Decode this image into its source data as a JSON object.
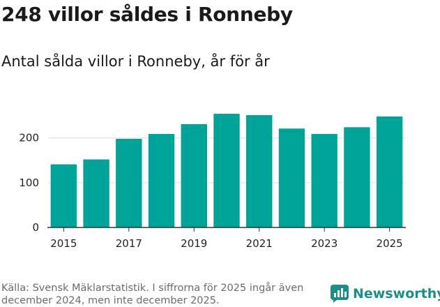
{
  "header": {
    "title": "248 villor såldes i Ronneby",
    "subtitle": "Antal sålda villor i Ronneby, år för år"
  },
  "footer": {
    "source_text": "Källa: Svensk Mäklarstatistik. I siffrorna för 2025 ingår även december 2024, men inte december 2025.",
    "brand": "Newsworthy"
  },
  "colors": {
    "bar": "#00A398",
    "brand": "#1B8F87",
    "grid": "#DDDDDD",
    "axis": "#333333"
  },
  "chart_data": {
    "type": "bar",
    "title": "248 villor såldes i Ronneby",
    "subtitle": "Antal sålda villor i Ronneby, år för år",
    "categories": [
      "2015",
      "2016",
      "2017",
      "2018",
      "2019",
      "2020",
      "2021",
      "2022",
      "2023",
      "2024",
      "2025"
    ],
    "values": [
      141,
      152,
      198,
      209,
      231,
      254,
      251,
      221,
      209,
      224,
      248
    ],
    "x_tick_labels": [
      "2015",
      "2017",
      "2019",
      "2021",
      "2023",
      "2025"
    ],
    "y_ticks": [
      0,
      100,
      200
    ],
    "ylim": [
      0,
      290
    ],
    "xlabel": "",
    "ylabel": "",
    "grid": true,
    "legend": "none"
  }
}
